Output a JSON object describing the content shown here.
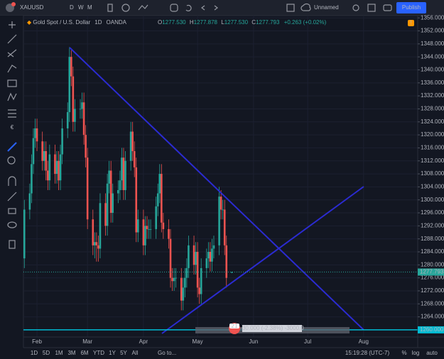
{
  "toolbar": {
    "symbol": "XAUUSD",
    "intervals": [
      "D",
      "W",
      "M"
    ],
    "layout_name": "Unnamed",
    "publish": "Publish"
  },
  "chart_data": {
    "type": "candlestick",
    "title": "Gold Spot / U.S. Dollar",
    "interval": "1D",
    "source": "OANDA",
    "ohlc_labels": [
      "O",
      "H",
      "L",
      "C"
    ],
    "last_labels": [
      "1277.530",
      "1277.878",
      "1277.530",
      "1277.793"
    ],
    "change": "+0.263 (+0.02%)",
    "x": [
      25,
      28,
      29,
      30,
      31,
      32,
      35,
      36,
      37,
      38,
      39,
      42,
      43,
      44,
      45,
      46,
      49,
      50,
      51,
      52,
      53,
      56,
      57,
      58,
      59,
      60,
      63,
      64,
      65,
      66,
      67,
      70,
      71,
      72,
      73,
      74,
      77,
      78,
      79,
      80,
      81,
      84,
      85,
      86,
      87,
      88,
      91,
      92,
      93,
      94,
      95,
      98,
      99,
      100,
      101,
      102,
      105,
      106,
      107,
      108,
      109,
      112,
      113,
      114,
      115,
      116,
      119,
      120,
      121,
      122,
      123,
      126,
      127,
      128,
      129,
      130,
      133,
      134,
      135,
      136,
      137,
      140
    ],
    "open": [
      1282,
      1297,
      1302,
      1311,
      1319,
      1322,
      1318,
      1312,
      1315,
      1309,
      1306,
      1314,
      1308,
      1312,
      1306,
      1314,
      1322,
      1327,
      1344,
      1338,
      1324,
      1328,
      1328,
      1330,
      1320,
      1313,
      1294,
      1286,
      1287,
      1286,
      1285,
      1299,
      1292,
      1305,
      1309,
      1296,
      1302,
      1303,
      1306,
      1313,
      1303,
      1312,
      1321,
      1315,
      1310,
      1290,
      1294,
      1286,
      1292,
      1291,
      1291,
      1291,
      1298,
      1302,
      1308,
      1293,
      1291,
      1288,
      1276,
      1275,
      1276,
      1276,
      1269,
      1273,
      1276,
      1279,
      1286,
      1280,
      1284,
      1273,
      1271,
      1279,
      1282,
      1284,
      1281,
      1285,
      1286,
      1301,
      1297,
      1297,
      1286,
      1277.53
    ],
    "high": [
      1300,
      1305,
      1314,
      1322,
      1325,
      1325,
      1321,
      1318,
      1318,
      1312,
      1317,
      1317,
      1315,
      1315,
      1317,
      1325,
      1330,
      1347,
      1346,
      1341,
      1331,
      1331,
      1333,
      1333,
      1323,
      1316,
      1297,
      1290,
      1290,
      1289,
      1302,
      1302,
      1308,
      1312,
      1312,
      1305,
      1306,
      1309,
      1316,
      1316,
      1315,
      1324,
      1324,
      1318,
      1313,
      1297,
      1297,
      1295,
      1295,
      1294,
      1294,
      1301,
      1305,
      1311,
      1311,
      1296,
      1294,
      1291,
      1279,
      1279,
      1279,
      1279,
      1276,
      1279,
      1282,
      1289,
      1289,
      1287,
      1287,
      1276,
      1282,
      1285,
      1287,
      1287,
      1288,
      1289,
      1304,
      1303,
      1300,
      1300,
      1289,
      1277.878
    ],
    "low": [
      1279,
      1294,
      1299,
      1308,
      1316,
      1315,
      1309,
      1309,
      1306,
      1303,
      1303,
      1305,
      1305,
      1303,
      1303,
      1311,
      1319,
      1324,
      1335,
      1321,
      1321,
      1325,
      1325,
      1317,
      1310,
      1291,
      1283,
      1282,
      1281,
      1281,
      1282,
      1289,
      1289,
      1302,
      1293,
      1293,
      1299,
      1300,
      1303,
      1300,
      1300,
      1309,
      1312,
      1307,
      1287,
      1287,
      1283,
      1283,
      1288,
      1288,
      1288,
      1288,
      1295,
      1299,
      1290,
      1288,
      1285,
      1273,
      1272,
      1272,
      1273,
      1266,
      1266,
      1270,
      1273,
      1276,
      1277,
      1277,
      1270,
      1268,
      1268,
      1276,
      1279,
      1278,
      1278,
      1282,
      1283,
      1294,
      1294,
      1283,
      1273,
      1277.53
    ],
    "close": [
      1297,
      1302,
      1311,
      1319,
      1322,
      1318,
      1312,
      1315,
      1309,
      1306,
      1314,
      1308,
      1312,
      1306,
      1314,
      1322,
      1327,
      1344,
      1338,
      1324,
      1328,
      1328,
      1330,
      1320,
      1313,
      1294,
      1286,
      1287,
      1286,
      1285,
      1299,
      1292,
      1305,
      1309,
      1296,
      1302,
      1303,
      1306,
      1313,
      1303,
      1312,
      1321,
      1315,
      1310,
      1290,
      1294,
      1286,
      1292,
      1291,
      1291,
      1291,
      1298,
      1302,
      1308,
      1293,
      1291,
      1288,
      1276,
      1275,
      1276,
      1276,
      1269,
      1273,
      1276,
      1279,
      1286,
      1280,
      1284,
      1273,
      1271,
      1279,
      1282,
      1284,
      1281,
      1285,
      1286,
      1301,
      1297,
      1297,
      1286,
      1276,
      1277.793
    ],
    "up_color": "#26a69a",
    "down_color": "#ef5350",
    "xlim": [
      24.5,
      243
    ],
    "xticks": [
      {
        "value": 32,
        "label": "Feb"
      },
      {
        "value": 60,
        "label": "Mar"
      },
      {
        "value": 91,
        "label": "Apr"
      },
      {
        "value": 121,
        "label": "May"
      },
      {
        "value": 152,
        "label": "Jun"
      },
      {
        "value": 182,
        "label": "Jul"
      },
      {
        "value": 213,
        "label": "Aug"
      }
    ],
    "ylim": [
      1257.8,
      1356.7
    ],
    "yticks": [
      {
        "value": 1356,
        "label": "1356.000"
      },
      {
        "value": 1352,
        "label": "1352.000"
      },
      {
        "value": 1348,
        "label": "1348.000"
      },
      {
        "value": 1344,
        "label": "1344.000"
      },
      {
        "value": 1340,
        "label": "1340.000"
      },
      {
        "value": 1336,
        "label": "1336.000"
      },
      {
        "value": 1332,
        "label": "1332.000"
      },
      {
        "value": 1328,
        "label": "1328.000"
      },
      {
        "value": 1324,
        "label": "1324.000"
      },
      {
        "value": 1320,
        "label": "1320.000"
      },
      {
        "value": 1316,
        "label": "1316.000"
      },
      {
        "value": 1312,
        "label": "1312.000"
      },
      {
        "value": 1308,
        "label": "1308.000"
      },
      {
        "value": 1304,
        "label": "1304.000"
      },
      {
        "value": 1300,
        "label": "1300.000"
      },
      {
        "value": 1296,
        "label": "1296.000"
      },
      {
        "value": 1292,
        "label": "1292.000"
      },
      {
        "value": 1288,
        "label": "1288.000"
      },
      {
        "value": 1284,
        "label": "1284.000"
      },
      {
        "value": 1280,
        "label": "1280.000"
      },
      {
        "value": 1276,
        "label": "1276.000"
      },
      {
        "value": 1272,
        "label": "1272.000"
      },
      {
        "value": 1268,
        "label": "1268.000"
      },
      {
        "value": 1264,
        "label": "1264.000"
      }
    ],
    "grid": true,
    "hline": {
      "value": 1260,
      "label": "1260.000",
      "color": "#00bcd4"
    },
    "measure": {
      "badge": "21",
      "label": "-30.000 (-2.38%) -3000.0"
    }
  },
  "bottom_bar": {
    "ranges": [
      "1D",
      "5D",
      "1M",
      "3M",
      "6M",
      "YTD",
      "1Y",
      "5Y",
      "All"
    ],
    "goto": "Go to...",
    "clock": "15:19:28 (UTC-7)",
    "percent": "%",
    "log": "log",
    "auto": "auto"
  }
}
